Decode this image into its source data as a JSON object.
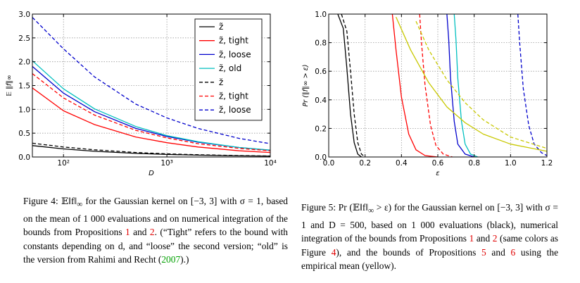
{
  "figures": [
    {
      "caption_label": "Figure 4:",
      "caption_parts": [
        " 𝔼‖f‖",
        "∞",
        " for the Gaussian kernel on [−3, 3] with σ = 1, based on the mean of 1 000 evaluations and on numerical integration of the bounds from Propositions ",
        "1",
        " and ",
        "2",
        ". (“Tight” refers to the bound with constants depending on d, and “loose” the second version; “old” is the version from Rahimi and Recht (",
        "2007",
        ").)"
      ]
    },
    {
      "caption_label": "Figure 5:",
      "caption_parts": [
        " Pr (𝔼‖f‖",
        "∞",
        " > ε) for the Gaussian kernel on [−3, 3] with σ = 1 and D = 500, based on 1 000 evaluations (black), numerical integration of the bounds from Propositions ",
        "1",
        " and ",
        "2",
        " (same colors as Figure ",
        "4",
        "), and the bounds of Propositions ",
        "5",
        " and ",
        "6",
        " using the empirical mean (yellow)."
      ]
    }
  ],
  "chart_data": [
    {
      "type": "line",
      "xscale": "log",
      "xlim": [
        50,
        10000
      ],
      "ylim": [
        0.0,
        3.0
      ],
      "xlabel": "D",
      "ylabel": "𝔼 ‖f‖∞",
      "xticks": [
        100,
        1000,
        10000
      ],
      "xtick_labels": [
        "10²",
        "10³",
        "10⁴"
      ],
      "yticks": [
        0.0,
        0.5,
        1.0,
        1.5,
        2.0,
        2.5,
        3.0
      ],
      "ytick_labels": [
        "0.0",
        "0.5",
        "1.0",
        "1.5",
        "2.0",
        "2.5",
        "3.0"
      ],
      "grid": true,
      "legend_position": "top-right",
      "series": [
        {
          "name": "z̃",
          "color": "#000000",
          "dash": "solid",
          "x": [
            50,
            100,
            200,
            500,
            1000,
            2000,
            5000,
            10000
          ],
          "y": [
            0.24,
            0.17,
            0.12,
            0.075,
            0.053,
            0.038,
            0.024,
            0.017
          ]
        },
        {
          "name": "z̃, tight",
          "color": "#ff0000",
          "dash": "solid",
          "x": [
            50,
            100,
            200,
            500,
            1000,
            2000,
            5000,
            10000
          ],
          "y": [
            1.45,
            0.97,
            0.68,
            0.42,
            0.3,
            0.21,
            0.13,
            0.095
          ]
        },
        {
          "name": "z̃, loose",
          "color": "#0000cc",
          "dash": "solid",
          "x": [
            50,
            100,
            200,
            500,
            1000,
            2000,
            5000,
            10000
          ],
          "y": [
            1.9,
            1.34,
            0.95,
            0.6,
            0.43,
            0.31,
            0.2,
            0.14
          ]
        },
        {
          "name": "z̃, old",
          "color": "#00bfbf",
          "dash": "solid",
          "x": [
            50,
            100,
            200,
            500,
            1000,
            2000,
            5000,
            10000
          ],
          "y": [
            2.02,
            1.43,
            1.01,
            0.64,
            0.45,
            0.32,
            0.2,
            0.145
          ]
        },
        {
          "name": "z̆",
          "color": "#000000",
          "dash": "dashed",
          "x": [
            50,
            100,
            200,
            500,
            1000,
            2000,
            5000,
            10000
          ],
          "y": [
            0.29,
            0.21,
            0.15,
            0.095,
            0.067,
            0.048,
            0.03,
            0.021
          ]
        },
        {
          "name": "z̆, tight",
          "color": "#ff0000",
          "dash": "dashed",
          "x": [
            50,
            100,
            200,
            500,
            1000,
            2000,
            5000,
            10000
          ],
          "y": [
            1.75,
            1.24,
            0.88,
            0.56,
            0.4,
            0.28,
            0.18,
            0.13
          ]
        },
        {
          "name": "z̆, loose",
          "color": "#0000cc",
          "dash": "dashed",
          "x": [
            50,
            100,
            200,
            500,
            1000,
            2000,
            5000,
            10000
          ],
          "y": [
            2.93,
            2.27,
            1.68,
            1.11,
            0.82,
            0.6,
            0.39,
            0.28
          ]
        }
      ]
    },
    {
      "type": "line",
      "xlim": [
        0.0,
        1.2
      ],
      "ylim": [
        0.0,
        1.0
      ],
      "xlabel": "ε",
      "ylabel": "Pr (‖f‖∞ > ε)",
      "xticks": [
        0.0,
        0.2,
        0.4,
        0.6,
        0.8,
        1.0,
        1.2
      ],
      "xtick_labels": [
        "0.0",
        "0.2",
        "0.4",
        "0.6",
        "0.8",
        "1.0",
        "1.2"
      ],
      "yticks": [
        0.0,
        0.2,
        0.4,
        0.6,
        0.8,
        1.0
      ],
      "ytick_labels": [
        "0.0",
        "0.2",
        "0.4",
        "0.6",
        "0.8",
        "1.0"
      ],
      "grid": true,
      "series": [
        {
          "color": "#000000",
          "dash": "solid",
          "x": [
            0.05,
            0.08,
            0.1,
            0.12,
            0.14,
            0.16,
            0.18
          ],
          "y": [
            1.0,
            0.9,
            0.62,
            0.3,
            0.1,
            0.02,
            0.0
          ]
        },
        {
          "color": "#000000",
          "dash": "dashed",
          "x": [
            0.07,
            0.1,
            0.12,
            0.14,
            0.16,
            0.18,
            0.2
          ],
          "y": [
            1.0,
            0.88,
            0.6,
            0.3,
            0.1,
            0.02,
            0.0
          ]
        },
        {
          "color": "#ff0000",
          "dash": "solid",
          "x": [
            0.35,
            0.37,
            0.4,
            0.44,
            0.48,
            0.53,
            0.6
          ],
          "y": [
            1.0,
            0.75,
            0.42,
            0.16,
            0.05,
            0.01,
            0.0
          ]
        },
        {
          "color": "#ff0000",
          "dash": "dashed",
          "x": [
            0.5,
            0.51,
            0.53,
            0.56,
            0.59,
            0.63,
            0.68
          ],
          "y": [
            1.0,
            0.8,
            0.5,
            0.22,
            0.08,
            0.02,
            0.0
          ]
        },
        {
          "color": "#0000cc",
          "dash": "solid",
          "x": [
            0.65,
            0.66,
            0.67,
            0.69,
            0.71,
            0.75,
            0.8
          ],
          "y": [
            1.0,
            0.82,
            0.55,
            0.25,
            0.09,
            0.02,
            0.0
          ]
        },
        {
          "color": "#00bfbf",
          "dash": "solid",
          "x": [
            0.69,
            0.7,
            0.71,
            0.73,
            0.75,
            0.78,
            0.82
          ],
          "y": [
            1.0,
            0.82,
            0.55,
            0.25,
            0.09,
            0.02,
            0.0
          ]
        },
        {
          "color": "#0000cc",
          "dash": "dashed",
          "x": [
            1.04,
            1.05,
            1.07,
            1.1,
            1.13,
            1.17,
            1.2
          ],
          "y": [
            1.0,
            0.8,
            0.48,
            0.22,
            0.09,
            0.03,
            0.01
          ]
        },
        {
          "color": "#c8c800",
          "dash": "solid",
          "x": [
            0.37,
            0.45,
            0.55,
            0.65,
            0.75,
            0.85,
            1.0,
            1.2
          ],
          "y": [
            0.98,
            0.75,
            0.52,
            0.35,
            0.24,
            0.16,
            0.09,
            0.04
          ]
        },
        {
          "color": "#c8c800",
          "dash": "dashed",
          "x": [
            0.48,
            0.55,
            0.65,
            0.75,
            0.85,
            1.0,
            1.2
          ],
          "y": [
            0.95,
            0.75,
            0.54,
            0.38,
            0.26,
            0.14,
            0.06
          ]
        }
      ]
    }
  ]
}
